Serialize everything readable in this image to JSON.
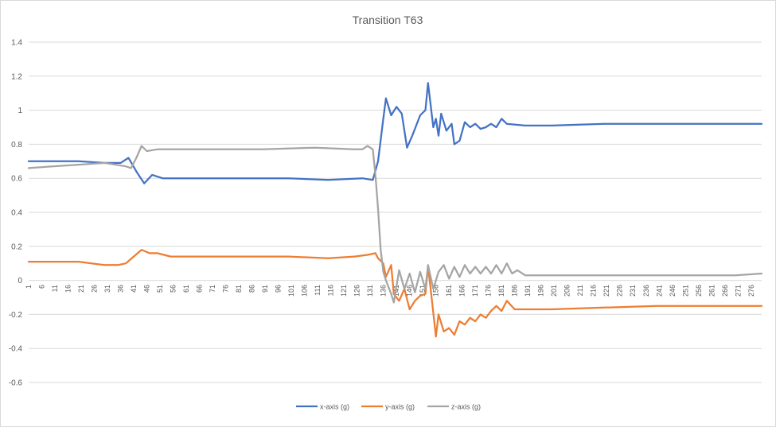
{
  "chart_data": {
    "type": "line",
    "title": "Transition T63",
    "xlabel": "",
    "ylabel": "",
    "ylim": [
      -0.6,
      1.4
    ],
    "yticks": [
      -0.6,
      -0.4,
      -0.2,
      0,
      0.2,
      0.4,
      0.6,
      0.8,
      1,
      1.2,
      1.4
    ],
    "ytick_labels": [
      "-0.6",
      "-0.4",
      "-0.2",
      "0",
      "0.2",
      "0.4",
      "0.6",
      "0.8",
      "1",
      "1.2",
      "1.4"
    ],
    "x_range": [
      1,
      280
    ],
    "xtick_labels": [
      "1",
      "6",
      "11",
      "16",
      "21",
      "26",
      "31",
      "36",
      "41",
      "46",
      "51",
      "56",
      "61",
      "66",
      "71",
      "76",
      "81",
      "86",
      "91",
      "96",
      "101",
      "106",
      "111",
      "116",
      "121",
      "126",
      "131",
      "136",
      "141",
      "146",
      "151",
      "156",
      "161",
      "166",
      "171",
      "176",
      "181",
      "186",
      "191",
      "196",
      "201",
      "206",
      "211",
      "216",
      "221",
      "226",
      "231",
      "236",
      "241",
      "246",
      "251",
      "256",
      "261",
      "266",
      "271",
      "276"
    ],
    "grid": "horizontal",
    "legend": "bottom",
    "series": [
      {
        "name": "x-axis (g)",
        "color": "#4472c4",
        "points": [
          [
            1,
            0.7
          ],
          [
            10,
            0.7
          ],
          [
            20,
            0.7
          ],
          [
            30,
            0.69
          ],
          [
            36,
            0.69
          ],
          [
            39,
            0.72
          ],
          [
            42,
            0.64
          ],
          [
            45,
            0.57
          ],
          [
            48,
            0.62
          ],
          [
            52,
            0.6
          ],
          [
            60,
            0.6
          ],
          [
            80,
            0.6
          ],
          [
            100,
            0.6
          ],
          [
            115,
            0.59
          ],
          [
            128,
            0.6
          ],
          [
            132,
            0.59
          ],
          [
            134,
            0.7
          ],
          [
            136,
            0.95
          ],
          [
            137,
            1.07
          ],
          [
            139,
            0.97
          ],
          [
            141,
            1.02
          ],
          [
            143,
            0.98
          ],
          [
            145,
            0.78
          ],
          [
            147,
            0.85
          ],
          [
            150,
            0.97
          ],
          [
            152,
            1.0
          ],
          [
            153,
            1.16
          ],
          [
            155,
            0.9
          ],
          [
            156,
            0.95
          ],
          [
            157,
            0.85
          ],
          [
            158,
            0.98
          ],
          [
            160,
            0.88
          ],
          [
            162,
            0.92
          ],
          [
            163,
            0.8
          ],
          [
            165,
            0.82
          ],
          [
            167,
            0.93
          ],
          [
            169,
            0.9
          ],
          [
            171,
            0.92
          ],
          [
            173,
            0.89
          ],
          [
            175,
            0.9
          ],
          [
            177,
            0.92
          ],
          [
            179,
            0.9
          ],
          [
            181,
            0.95
          ],
          [
            183,
            0.92
          ],
          [
            190,
            0.91
          ],
          [
            200,
            0.91
          ],
          [
            220,
            0.92
          ],
          [
            240,
            0.92
          ],
          [
            260,
            0.92
          ],
          [
            270,
            0.92
          ],
          [
            280,
            0.92
          ]
        ]
      },
      {
        "name": "y-axis (g)",
        "color": "#ed7d31",
        "points": [
          [
            1,
            0.11
          ],
          [
            10,
            0.11
          ],
          [
            20,
            0.11
          ],
          [
            30,
            0.09
          ],
          [
            35,
            0.09
          ],
          [
            38,
            0.1
          ],
          [
            41,
            0.14
          ],
          [
            44,
            0.18
          ],
          [
            47,
            0.16
          ],
          [
            50,
            0.16
          ],
          [
            55,
            0.14
          ],
          [
            60,
            0.14
          ],
          [
            80,
            0.14
          ],
          [
            100,
            0.14
          ],
          [
            115,
            0.13
          ],
          [
            125,
            0.14
          ],
          [
            130,
            0.15
          ],
          [
            133,
            0.16
          ],
          [
            134,
            0.13
          ],
          [
            136,
            0.1
          ],
          [
            137,
            0.02
          ],
          [
            139,
            0.09
          ],
          [
            140,
            -0.08
          ],
          [
            142,
            -0.12
          ],
          [
            144,
            -0.05
          ],
          [
            146,
            -0.17
          ],
          [
            148,
            -0.12
          ],
          [
            150,
            -0.09
          ],
          [
            152,
            -0.08
          ],
          [
            153,
            0.08
          ],
          [
            154,
            -0.05
          ],
          [
            156,
            -0.33
          ],
          [
            157,
            -0.2
          ],
          [
            159,
            -0.3
          ],
          [
            161,
            -0.28
          ],
          [
            163,
            -0.32
          ],
          [
            165,
            -0.24
          ],
          [
            167,
            -0.26
          ],
          [
            169,
            -0.22
          ],
          [
            171,
            -0.24
          ],
          [
            173,
            -0.2
          ],
          [
            175,
            -0.22
          ],
          [
            177,
            -0.18
          ],
          [
            179,
            -0.15
          ],
          [
            181,
            -0.18
          ],
          [
            183,
            -0.12
          ],
          [
            186,
            -0.17
          ],
          [
            195,
            -0.17
          ],
          [
            200,
            -0.17
          ],
          [
            220,
            -0.16
          ],
          [
            240,
            -0.15
          ],
          [
            260,
            -0.15
          ],
          [
            270,
            -0.15
          ],
          [
            280,
            -0.15
          ]
        ]
      },
      {
        "name": "z-axis (g)",
        "color": "#a5a5a5",
        "points": [
          [
            1,
            0.66
          ],
          [
            10,
            0.67
          ],
          [
            20,
            0.68
          ],
          [
            30,
            0.69
          ],
          [
            38,
            0.67
          ],
          [
            40,
            0.66
          ],
          [
            42,
            0.72
          ],
          [
            44,
            0.79
          ],
          [
            46,
            0.76
          ],
          [
            50,
            0.77
          ],
          [
            55,
            0.77
          ],
          [
            70,
            0.77
          ],
          [
            90,
            0.77
          ],
          [
            110,
            0.78
          ],
          [
            125,
            0.77
          ],
          [
            128,
            0.77
          ],
          [
            130,
            0.79
          ],
          [
            132,
            0.77
          ],
          [
            133,
            0.62
          ],
          [
            134,
            0.42
          ],
          [
            135,
            0.18
          ],
          [
            136,
            0.05
          ],
          [
            137,
            0.0
          ],
          [
            139,
            -0.08
          ],
          [
            140,
            -0.13
          ],
          [
            142,
            0.06
          ],
          [
            144,
            -0.05
          ],
          [
            146,
            0.04
          ],
          [
            148,
            -0.07
          ],
          [
            150,
            0.05
          ],
          [
            152,
            -0.05
          ],
          [
            153,
            0.09
          ],
          [
            155,
            -0.05
          ],
          [
            157,
            0.05
          ],
          [
            159,
            0.09
          ],
          [
            161,
            0.01
          ],
          [
            163,
            0.08
          ],
          [
            165,
            0.02
          ],
          [
            167,
            0.09
          ],
          [
            169,
            0.04
          ],
          [
            171,
            0.08
          ],
          [
            173,
            0.04
          ],
          [
            175,
            0.08
          ],
          [
            177,
            0.04
          ],
          [
            179,
            0.09
          ],
          [
            181,
            0.04
          ],
          [
            183,
            0.1
          ],
          [
            185,
            0.04
          ],
          [
            187,
            0.06
          ],
          [
            190,
            0.03
          ],
          [
            200,
            0.03
          ],
          [
            220,
            0.03
          ],
          [
            240,
            0.03
          ],
          [
            260,
            0.03
          ],
          [
            270,
            0.03
          ],
          [
            280,
            0.04
          ]
        ]
      }
    ]
  }
}
